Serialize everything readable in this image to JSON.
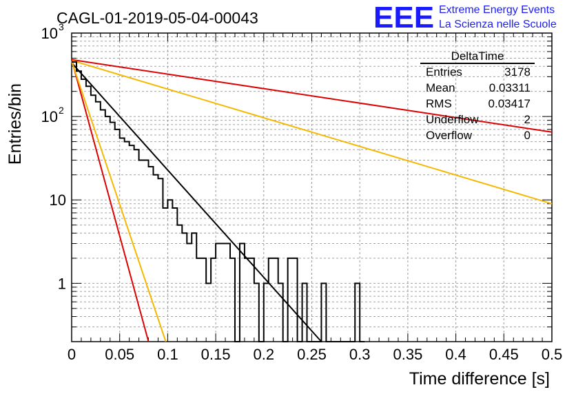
{
  "chart_data": {
    "type": "histogram",
    "title": "CAGL-01-2019-05-04-00043",
    "xlabel": "Time difference [s]",
    "ylabel": "Entries/bin",
    "xlim": [
      0,
      0.5
    ],
    "ylim": [
      0.2,
      1000
    ],
    "yscale": "log",
    "grid": true,
    "x_ticks": [
      "0",
      "0.05",
      "0.1",
      "0.15",
      "0.2",
      "0.25",
      "0.3",
      "0.35",
      "0.4",
      "0.45",
      "0.5"
    ],
    "y_ticks": [
      "1",
      "10"
    ],
    "bin_width": 0.005,
    "histogram": {
      "name": "DeltaTime",
      "values": [
        450,
        350,
        280,
        230,
        180,
        150,
        120,
        100,
        85,
        70,
        55,
        50,
        45,
        40,
        30,
        30,
        25,
        20,
        18,
        8,
        10,
        8,
        5,
        4,
        3,
        4,
        2,
        2,
        1,
        2,
        3,
        3,
        3,
        2,
        0,
        3,
        2,
        2,
        1,
        0,
        1,
        2,
        2,
        1,
        0,
        2,
        2,
        0,
        1,
        0,
        0,
        0,
        1,
        0,
        0,
        0,
        0,
        0,
        0,
        1,
        0
      ]
    },
    "fit_lines": [
      {
        "color": "#000000",
        "from": [
          0,
          440
        ],
        "to": [
          0.26,
          0.2
        ]
      },
      {
        "color": "#dd0000",
        "from": [
          0,
          480
        ],
        "to": [
          0.5,
          65
        ]
      },
      {
        "color": "#f5b800",
        "from": [
          0,
          470
        ],
        "to": [
          0.5,
          9
        ]
      },
      {
        "color": "#dd0000",
        "from": [
          0,
          480
        ],
        "to": [
          0.08,
          0.2
        ]
      },
      {
        "color": "#f5b800",
        "from": [
          0,
          460
        ],
        "to": [
          0.098,
          0.2
        ]
      }
    ],
    "stats_box": {
      "title": "DeltaTime",
      "rows": [
        {
          "label": "Entries",
          "value": "3178"
        },
        {
          "label": "Mean",
          "value": "0.03311"
        },
        {
          "label": "RMS",
          "value": "0.03417"
        },
        {
          "label": "Underflow",
          "value": "2"
        },
        {
          "label": "Overflow",
          "value": "0"
        }
      ]
    }
  },
  "logo": {
    "letters": "EEE",
    "line1": "Extreme Energy Events",
    "line2": "La Scienza nelle Scuole",
    "color": "#1a1aff"
  }
}
